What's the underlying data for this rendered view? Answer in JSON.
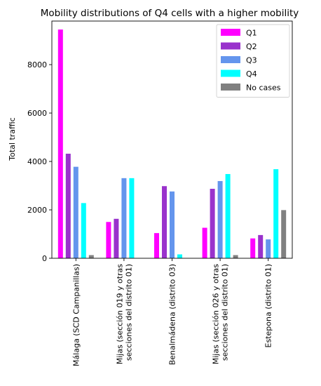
{
  "chart_data": {
    "type": "bar",
    "title": "Mobility distributions of Q4 cells with a higher mobility",
    "xlabel": "",
    "ylabel": "Total traffic",
    "ylim": [
      0,
      9800
    ],
    "yticks": [
      0,
      2000,
      4000,
      6000,
      8000
    ],
    "categories": [
      "Málaga (SCD Campanillas)",
      "Mijas (sección 019 y otras\nsecciones del distrito 01)",
      "Benalmádena (distrito 03)",
      "Mijas (sección 026 y otras\nsecciones del distrito 01)",
      "Estepona (distrito 01)"
    ],
    "series": [
      {
        "name": "Q1",
        "color": "#ff00ff",
        "values": [
          9450,
          1500,
          1040,
          1260,
          820
        ]
      },
      {
        "name": "Q2",
        "color": "#9932cc",
        "values": [
          4320,
          1630,
          2980,
          2870,
          960
        ]
      },
      {
        "name": "Q3",
        "color": "#6495ed",
        "values": [
          3780,
          3310,
          2760,
          3190,
          780
        ]
      },
      {
        "name": "Q4",
        "color": "#00ffff",
        "values": [
          2280,
          3310,
          160,
          3480,
          3680
        ]
      },
      {
        "name": "No cases",
        "color": "#808080",
        "values": [
          130,
          0,
          0,
          130,
          1990
        ]
      }
    ],
    "grid": false,
    "legend": "top-right"
  }
}
